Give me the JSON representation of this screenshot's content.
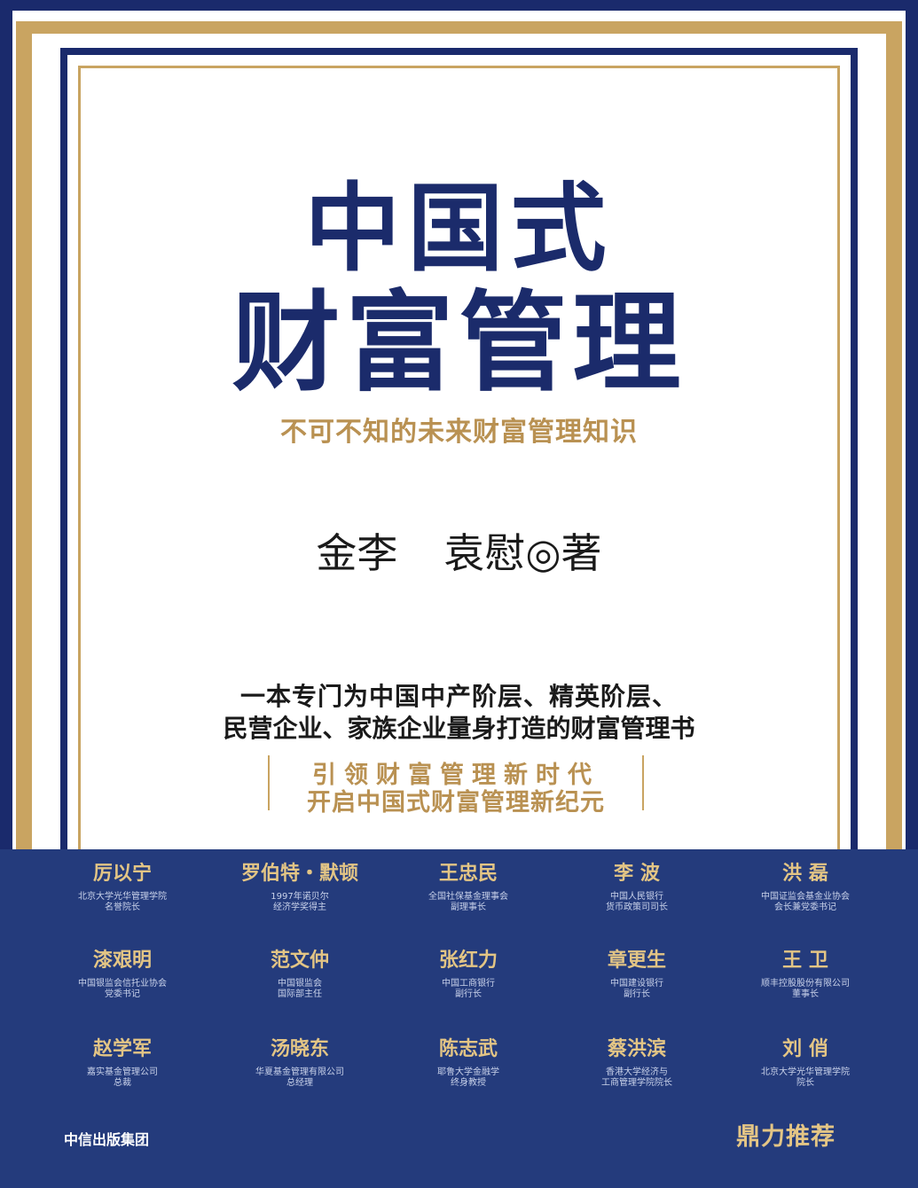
{
  "title_line1": "中国式",
  "title_line2": "财富管理",
  "subtitle": "不可不知的未来财富管理知识",
  "author1": "金李",
  "author2": "袁慰◎著",
  "description_line1": "一本专门为中国中产阶层、精英阶层、",
  "description_line2": "民营企业、家族企业量身打造的财富管理书",
  "slogan_line1": "引领财富管理新时代",
  "slogan_line2": "开启中国式财富管理新纪元",
  "recommenders": [
    {
      "name": "厉以宁",
      "title": "北京大学光华管理学院\n名誉院长"
    },
    {
      "name": "罗伯特・默顿",
      "title": "1997年诺贝尔\n经济学奖得主"
    },
    {
      "name": "王忠民",
      "title": "全国社保基金理事会\n副理事长"
    },
    {
      "name": "李 波",
      "title": "中国人民银行\n货币政策司司长"
    },
    {
      "name": "洪 磊",
      "title": "中国证监会基金业协会\n会长兼党委书记"
    },
    {
      "name": "漆艰明",
      "title": "中国银监会信托业协会\n党委书记"
    },
    {
      "name": "范文仲",
      "title": "中国银监会\n国际部主任"
    },
    {
      "name": "张红力",
      "title": "中国工商银行\n副行长"
    },
    {
      "name": "章更生",
      "title": "中国建设银行\n副行长"
    },
    {
      "name": "王 卫",
      "title": "顺丰控股股份有限公司\n董事长"
    },
    {
      "name": "赵学军",
      "title": "嘉实基金管理公司\n总裁"
    },
    {
      "name": "汤晓东",
      "title": "华夏基金管理有限公司\n总经理"
    },
    {
      "name": "陈志武",
      "title": "耶鲁大学金融学\n终身教授"
    },
    {
      "name": "蔡洪滨",
      "title": "香港大学经济与\n工商管理学院院长"
    },
    {
      "name": "刘 俏",
      "title": "北京大学光华管理学院\n院长"
    }
  ],
  "publisher": "中信出版集团",
  "endorsement": "鼎力推荐",
  "colors": {
    "navy": "#1b2b6b",
    "gold": "#c9a461",
    "panel": "#243b7c"
  }
}
